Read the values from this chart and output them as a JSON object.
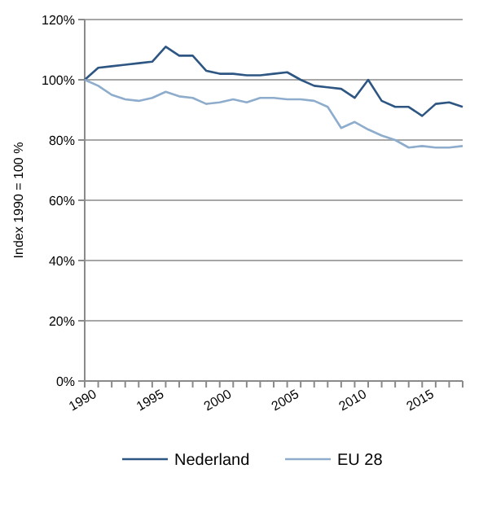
{
  "chart_data": {
    "type": "line",
    "ylabel": "Index 1990 = 100 %",
    "x": [
      1990,
      1991,
      1992,
      1993,
      1994,
      1995,
      1996,
      1997,
      1998,
      1999,
      2000,
      2001,
      2002,
      2003,
      2004,
      2005,
      2006,
      2007,
      2008,
      2009,
      2010,
      2011,
      2012,
      2013,
      2014,
      2015,
      2016,
      2017,
      2018
    ],
    "series": [
      {
        "name": "Nederland",
        "color": "#2e5683",
        "values": [
          100,
          104,
          104.5,
          105,
          105.5,
          106,
          111,
          108,
          108,
          103,
          102,
          102,
          101.5,
          101.5,
          102,
          102.5,
          100,
          98,
          97.5,
          97,
          94,
          100,
          93,
          91,
          91,
          88,
          92,
          92.5,
          91
        ]
      },
      {
        "name": "EU 28",
        "color": "#8eaccc",
        "values": [
          100,
          98,
          95,
          93.5,
          93,
          94,
          96,
          94.5,
          94,
          92,
          92.5,
          93.5,
          92.5,
          94,
          94,
          93.5,
          93.5,
          93,
          91,
          84,
          86,
          83.5,
          81.5,
          80,
          77.5,
          78,
          77.5,
          77.5,
          78
        ]
      }
    ],
    "xlim": [
      1990,
      2018
    ],
    "xticks": [
      1990,
      {
        "value": 1991,
        "label": null
      },
      {
        "value": 1992,
        "label": null
      },
      {
        "value": 1993,
        "label": null
      },
      {
        "value": 1994,
        "label": null
      },
      1995,
      {
        "value": 1996,
        "label": null
      },
      {
        "value": 1997,
        "label": null
      },
      {
        "value": 1998,
        "label": null
      },
      {
        "value": 1999,
        "label": null
      },
      2000,
      {
        "value": 2001,
        "label": null
      },
      {
        "value": 2002,
        "label": null
      },
      {
        "value": 2003,
        "label": null
      },
      {
        "value": 2004,
        "label": null
      },
      2005,
      {
        "value": 2006,
        "label": null
      },
      {
        "value": 2007,
        "label": null
      },
      {
        "value": 2008,
        "label": null
      },
      {
        "value": 2009,
        "label": null
      },
      2010,
      {
        "value": 2011,
        "label": null
      },
      {
        "value": 2012,
        "label": null
      },
      {
        "value": 2013,
        "label": null
      },
      {
        "value": 2014,
        "label": null
      },
      2015,
      {
        "value": 2016,
        "label": null
      },
      {
        "value": 2017,
        "label": null
      },
      {
        "value": 2018,
        "label": null
      }
    ],
    "ylim": [
      0,
      120
    ],
    "yticks": [
      {
        "value": 0,
        "label": "0%"
      },
      {
        "value": 20,
        "label": "20%"
      },
      {
        "value": 40,
        "label": "40%"
      },
      {
        "value": 60,
        "label": "60%"
      },
      {
        "value": 80,
        "label": "80%"
      },
      {
        "value": 100,
        "label": "100%"
      },
      {
        "value": 120,
        "label": "120%"
      }
    ],
    "grid": "y",
    "legend": "bottom",
    "marker": "none",
    "line_style": "solid"
  }
}
